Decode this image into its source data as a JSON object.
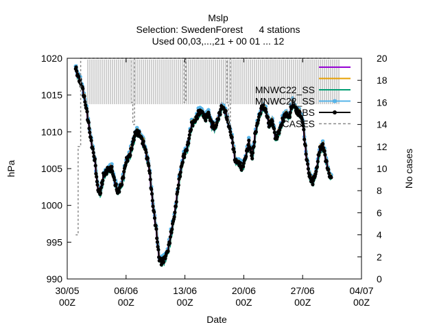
{
  "chart_data": {
    "type": "line",
    "title": "Mslp",
    "subtitle_lines": [
      "Selection: SwedenForest      4 stations",
      "Used 00,03,...,21 + 00 01 ... 12"
    ],
    "xlabel": "Date",
    "ylabel": "hPa",
    "y2label": "No cases",
    "x_ticks": [
      {
        "day": 0,
        "line1": "30/05",
        "line2": "00Z"
      },
      {
        "day": 7,
        "line1": "06/06",
        "line2": "00Z"
      },
      {
        "day": 14,
        "line1": "13/06",
        "line2": "00Z"
      },
      {
        "day": 21,
        "line1": "20/06",
        "line2": "00Z"
      },
      {
        "day": 28,
        "line1": "27/06",
        "line2": "00Z"
      },
      {
        "day": 35,
        "line1": "04/07",
        "line2": "00Z"
      }
    ],
    "xlim_days_since_3005": [
      0,
      35
    ],
    "ylim": [
      990,
      1020
    ],
    "y_ticks": [
      990,
      995,
      1000,
      1005,
      1010,
      1015,
      1020
    ],
    "y2lim": [
      0,
      20
    ],
    "y2_ticks": [
      0,
      2,
      4,
      6,
      8,
      10,
      12,
      14,
      16,
      18,
      20
    ],
    "legend_position": "top-right",
    "series": [
      {
        "name": "",
        "color": "#9400d3"
      },
      {
        "name": "",
        "color": "#e69f00"
      },
      {
        "name": "MNWC22_SS",
        "color": "#009e73"
      },
      {
        "name": "MNWC22_SS",
        "color": "#56b4e9"
      },
      {
        "name": "OBS",
        "color": "#000000"
      },
      {
        "name": "CASES",
        "color": "#888888"
      }
    ],
    "obs_knots": [
      [
        1.0,
        1018.7
      ],
      [
        1.3,
        1017.5
      ],
      [
        1.8,
        1016.0
      ],
      [
        2.3,
        1013.0
      ],
      [
        2.8,
        1009.0
      ],
      [
        3.3,
        1006.0
      ],
      [
        3.6,
        1002.5
      ],
      [
        3.9,
        1001.5
      ],
      [
        4.3,
        1004.0
      ],
      [
        4.8,
        1004.8
      ],
      [
        5.3,
        1005.0
      ],
      [
        5.7,
        1003.0
      ],
      [
        6.0,
        1001.8
      ],
      [
        6.5,
        1003.0
      ],
      [
        7.0,
        1006.0
      ],
      [
        7.5,
        1007.0
      ],
      [
        8.0,
        1009.5
      ],
      [
        8.3,
        1010.0
      ],
      [
        8.7,
        1009.5
      ],
      [
        9.2,
        1008.0
      ],
      [
        9.7,
        1005.5
      ],
      [
        10.2,
        1000.0
      ],
      [
        10.6,
        996.5
      ],
      [
        10.9,
        993.0
      ],
      [
        11.2,
        992.2
      ],
      [
        11.6,
        992.8
      ],
      [
        12.0,
        994.0
      ],
      [
        12.4,
        996.5
      ],
      [
        12.8,
        999.0
      ],
      [
        13.3,
        1003.5
      ],
      [
        13.8,
        1006.5
      ],
      [
        14.3,
        1008.0
      ],
      [
        14.8,
        1011.0
      ],
      [
        15.2,
        1011.5
      ],
      [
        15.6,
        1012.5
      ],
      [
        16.0,
        1012.8
      ],
      [
        16.4,
        1011.8
      ],
      [
        16.8,
        1012.5
      ],
      [
        17.2,
        1011.0
      ],
      [
        17.6,
        1010.5
      ],
      [
        18.0,
        1012.0
      ],
      [
        18.4,
        1013.5
      ],
      [
        18.8,
        1012.8
      ],
      [
        19.2,
        1011.0
      ],
      [
        19.6,
        1009.0
      ],
      [
        20.0,
        1006.0
      ],
      [
        20.4,
        1005.8
      ],
      [
        20.8,
        1005.0
      ],
      [
        21.2,
        1006.5
      ],
      [
        21.6,
        1008.5
      ],
      [
        22.0,
        1006.5
      ],
      [
        22.4,
        1010.0
      ],
      [
        22.8,
        1012.0
      ],
      [
        23.2,
        1013.5
      ],
      [
        23.6,
        1013.0
      ],
      [
        24.0,
        1011.0
      ],
      [
        24.4,
        1011.5
      ],
      [
        24.8,
        1009.0
      ],
      [
        25.2,
        1010.0
      ],
      [
        25.6,
        1011.5
      ],
      [
        26.0,
        1012.5
      ],
      [
        26.4,
        1012.0
      ],
      [
        26.8,
        1014.0
      ],
      [
        27.2,
        1013.0
      ],
      [
        27.6,
        1012.5
      ],
      [
        28.0,
        1011.5
      ],
      [
        28.4,
        1007.0
      ],
      [
        28.8,
        1004.0
      ],
      [
        29.2,
        1003.2
      ],
      [
        29.6,
        1004.5
      ],
      [
        30.0,
        1007.5
      ],
      [
        30.4,
        1008.3
      ],
      [
        30.8,
        1006.0
      ],
      [
        31.2,
        1004.0
      ],
      [
        31.4,
        1003.8
      ]
    ],
    "cases_steps": [
      [
        1.0,
        4
      ],
      [
        1.3,
        12
      ],
      [
        1.6,
        20
      ],
      [
        7.6,
        16
      ],
      [
        7.8,
        14
      ],
      [
        8.0,
        20
      ],
      [
        13.9,
        16
      ],
      [
        14.1,
        20
      ],
      [
        19.0,
        16
      ],
      [
        19.2,
        14
      ],
      [
        19.4,
        20
      ],
      [
        31.2,
        20
      ]
    ]
  }
}
